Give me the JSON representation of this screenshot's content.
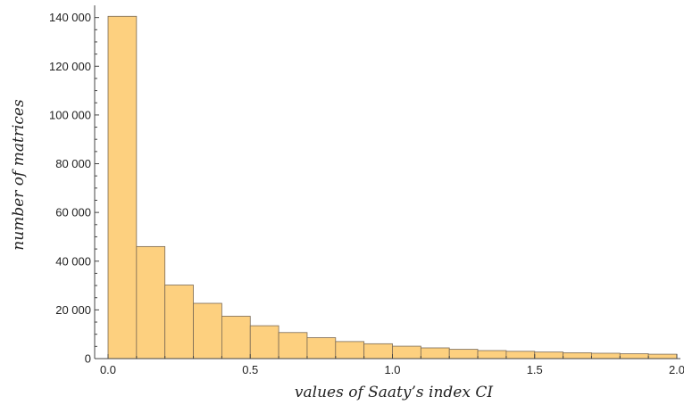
{
  "chart_data": {
    "type": "bar",
    "subtype": "histogram",
    "title": "",
    "xlabel": "values of Saaty’s index CI",
    "ylabel": "number of matrices",
    "xlim": [
      0.0,
      2.0
    ],
    "ylim": [
      0,
      145000
    ],
    "bin_width": 0.1,
    "bins": [
      {
        "start": 0.0,
        "end": 0.1,
        "value": 140500
      },
      {
        "start": 0.1,
        "end": 0.2,
        "value": 46000
      },
      {
        "start": 0.2,
        "end": 0.3,
        "value": 30200
      },
      {
        "start": 0.3,
        "end": 0.4,
        "value": 22700
      },
      {
        "start": 0.4,
        "end": 0.5,
        "value": 17400
      },
      {
        "start": 0.5,
        "end": 0.6,
        "value": 13500
      },
      {
        "start": 0.6,
        "end": 0.7,
        "value": 10700
      },
      {
        "start": 0.7,
        "end": 0.8,
        "value": 8600
      },
      {
        "start": 0.8,
        "end": 0.9,
        "value": 7000
      },
      {
        "start": 0.9,
        "end": 1.0,
        "value": 6100
      },
      {
        "start": 1.0,
        "end": 1.1,
        "value": 5100
      },
      {
        "start": 1.1,
        "end": 1.2,
        "value": 4400
      },
      {
        "start": 1.2,
        "end": 1.3,
        "value": 3800
      },
      {
        "start": 1.3,
        "end": 1.4,
        "value": 3300
      },
      {
        "start": 1.4,
        "end": 1.5,
        "value": 3000
      },
      {
        "start": 1.5,
        "end": 1.6,
        "value": 2700
      },
      {
        "start": 1.6,
        "end": 1.7,
        "value": 2400
      },
      {
        "start": 1.7,
        "end": 1.8,
        "value": 2200
      },
      {
        "start": 1.8,
        "end": 1.9,
        "value": 2000
      },
      {
        "start": 1.9,
        "end": 2.0,
        "value": 1800
      }
    ],
    "x_ticks": [
      "0.0",
      "0.5",
      "1.0",
      "1.5",
      "2.0"
    ],
    "x_tick_values": [
      0.0,
      0.5,
      1.0,
      1.5,
      2.0
    ],
    "y_ticks": [
      "0",
      "20 000",
      "40 000",
      "60 000",
      "80 000",
      "100 000",
      "120 000",
      "140 000"
    ],
    "y_tick_values": [
      0,
      20000,
      40000,
      60000,
      80000,
      100000,
      120000,
      140000
    ],
    "grid": false,
    "bar_color": "#fdd07f",
    "edge_color": "#7a6a55"
  }
}
